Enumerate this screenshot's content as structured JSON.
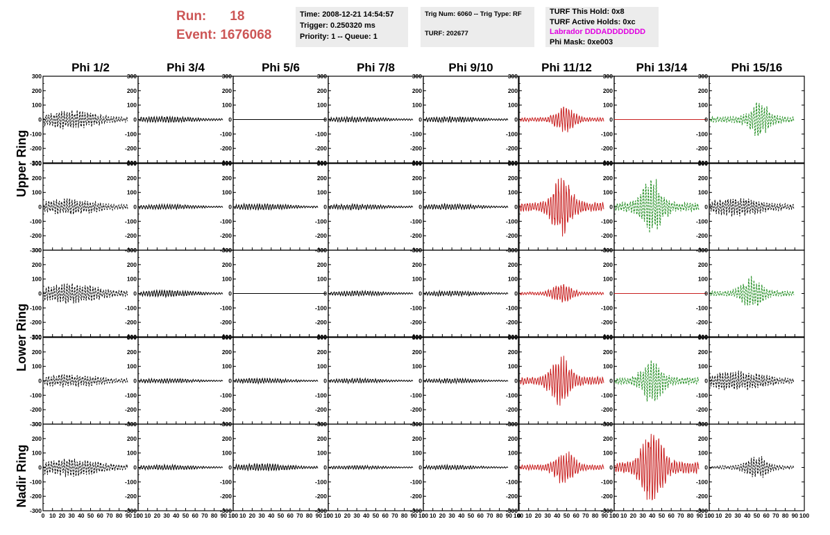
{
  "header": {
    "run_label": "Run:",
    "run_value": "18",
    "event_label": "Event:",
    "event_value": "1676068",
    "time": "Time: 2008-12-21 14:54:57",
    "trigger": "Trigger: 0.250320 ms",
    "priority": "Priority: 1 -- Queue: 1",
    "trig_num": "Trig Num: 6060 -- Trig Type: RF",
    "turf": "TURF: 202677",
    "turf_hold": "TURF This Hold: 0x8",
    "turf_active": "TURF Active Holds: 0xc",
    "labrador": "Labrador DDDADDDDDDD",
    "phi_mask": "Phi Mask: 0xe003"
  },
  "colors": {
    "run_text": "#cc5555",
    "labrador_text": "#e000e0",
    "trace_black": "#000000",
    "trace_red": "#c81e1e",
    "trace_green": "#1e8c1e",
    "info_bg": "#ececec"
  },
  "chart_data": {
    "type": "line",
    "columns": [
      "Phi 1/2",
      "Phi 3/4",
      "Phi 5/6",
      "Phi 7/8",
      "Phi 9/10",
      "Phi 11/12",
      "Phi 13/14",
      "Phi 15/16"
    ],
    "rows": [
      "Upper Ring",
      "Lower Ring",
      "Nadir Ring"
    ],
    "xlim": [
      0,
      100
    ],
    "ylim": [
      -300,
      300
    ],
    "x_ticks": [
      0,
      10,
      20,
      30,
      40,
      50,
      60,
      70,
      80,
      90,
      100
    ],
    "x_tick_labels": [
      "0",
      "10",
      "20",
      "30",
      "40",
      "50",
      "60",
      "70",
      "80",
      "90",
      "100"
    ],
    "y_ticks": [
      -300,
      -200,
      -100,
      0,
      100,
      200,
      300
    ],
    "y_tick_labels": [
      "-300",
      "-200",
      "-100",
      "0",
      "100",
      "200",
      "300"
    ],
    "grid": false,
    "panels": [
      [
        {
          "color": "black",
          "dashed": true,
          "amplitude": 70,
          "burst": false,
          "flat": false
        },
        {
          "color": "black",
          "dashed": false,
          "amplitude": 25,
          "burst": false,
          "flat": false
        },
        {
          "color": "black",
          "dashed": false,
          "amplitude": 0,
          "burst": false,
          "flat": true
        },
        {
          "color": "black",
          "dashed": false,
          "amplitude": 22,
          "burst": false,
          "flat": false
        },
        {
          "color": "black",
          "dashed": false,
          "amplitude": 22,
          "burst": false,
          "flat": false
        },
        {
          "color": "red",
          "dashed": false,
          "amplitude": 95,
          "burst": true,
          "flat": false,
          "center": 48
        },
        {
          "color": "red",
          "dashed": false,
          "amplitude": 0,
          "burst": false,
          "flat": true
        },
        {
          "color": "green",
          "dashed": true,
          "amplitude": 140,
          "burst": true,
          "flat": false,
          "center": 52
        }
      ],
      [
        {
          "color": "black",
          "dashed": true,
          "amplitude": 60,
          "burst": false,
          "flat": false
        },
        {
          "color": "black",
          "dashed": false,
          "amplitude": 20,
          "burst": false,
          "flat": false
        },
        {
          "color": "black",
          "dashed": false,
          "amplitude": 25,
          "burst": false,
          "flat": false
        },
        {
          "color": "black",
          "dashed": false,
          "amplitude": 22,
          "burst": false,
          "flat": false
        },
        {
          "color": "black",
          "dashed": false,
          "amplitude": 22,
          "burst": false,
          "flat": false
        },
        {
          "color": "red",
          "dashed": false,
          "amplitude": 220,
          "burst": true,
          "flat": false,
          "center": 45
        },
        {
          "color": "green",
          "dashed": true,
          "amplitude": 230,
          "burst": true,
          "flat": false,
          "center": 40
        },
        {
          "color": "black",
          "dashed": true,
          "amplitude": 70,
          "burst": false,
          "flat": false
        }
      ],
      [
        {
          "color": "black",
          "dashed": true,
          "amplitude": 75,
          "burst": false,
          "flat": false
        },
        {
          "color": "black",
          "dashed": false,
          "amplitude": 25,
          "burst": false,
          "flat": false
        },
        {
          "color": "black",
          "dashed": false,
          "amplitude": 0,
          "burst": false,
          "flat": true
        },
        {
          "color": "black",
          "dashed": false,
          "amplitude": 20,
          "burst": false,
          "flat": false
        },
        {
          "color": "black",
          "dashed": false,
          "amplitude": 20,
          "burst": false,
          "flat": false
        },
        {
          "color": "red",
          "dashed": false,
          "amplitude": 70,
          "burst": true,
          "flat": false,
          "center": 45
        },
        {
          "color": "red",
          "dashed": false,
          "amplitude": 0,
          "burst": false,
          "flat": true
        },
        {
          "color": "green",
          "dashed": true,
          "amplitude": 130,
          "burst": true,
          "flat": false,
          "center": 45
        }
      ],
      [
        {
          "color": "black",
          "dashed": true,
          "amplitude": 50,
          "burst": false,
          "flat": false
        },
        {
          "color": "black",
          "dashed": false,
          "amplitude": 18,
          "burst": false,
          "flat": false
        },
        {
          "color": "black",
          "dashed": false,
          "amplitude": 20,
          "burst": false,
          "flat": false
        },
        {
          "color": "black",
          "dashed": false,
          "amplitude": 18,
          "burst": false,
          "flat": false
        },
        {
          "color": "black",
          "dashed": false,
          "amplitude": 18,
          "burst": false,
          "flat": false
        },
        {
          "color": "red",
          "dashed": false,
          "amplitude": 190,
          "burst": true,
          "flat": false,
          "center": 43
        },
        {
          "color": "green",
          "dashed": true,
          "amplitude": 170,
          "burst": true,
          "flat": false,
          "center": 40
        },
        {
          "color": "black",
          "dashed": true,
          "amplitude": 75,
          "burst": false,
          "flat": false
        }
      ],
      [
        {
          "color": "black",
          "dashed": true,
          "amplitude": 70,
          "burst": false,
          "flat": false
        },
        {
          "color": "black",
          "dashed": false,
          "amplitude": 20,
          "burst": false,
          "flat": false
        },
        {
          "color": "black",
          "dashed": false,
          "amplitude": 30,
          "burst": false,
          "flat": false
        },
        {
          "color": "black",
          "dashed": false,
          "amplitude": 15,
          "burst": false,
          "flat": false
        },
        {
          "color": "black",
          "dashed": false,
          "amplitude": 18,
          "burst": false,
          "flat": false
        },
        {
          "color": "red",
          "dashed": false,
          "amplitude": 130,
          "burst": true,
          "flat": false,
          "center": 48
        },
        {
          "color": "red",
          "dashed": false,
          "amplitude": 290,
          "burst": true,
          "flat": false,
          "center": 40
        },
        {
          "color": "black",
          "dashed": true,
          "amplitude": 90,
          "burst": true,
          "flat": false,
          "center": 50
        }
      ]
    ]
  }
}
